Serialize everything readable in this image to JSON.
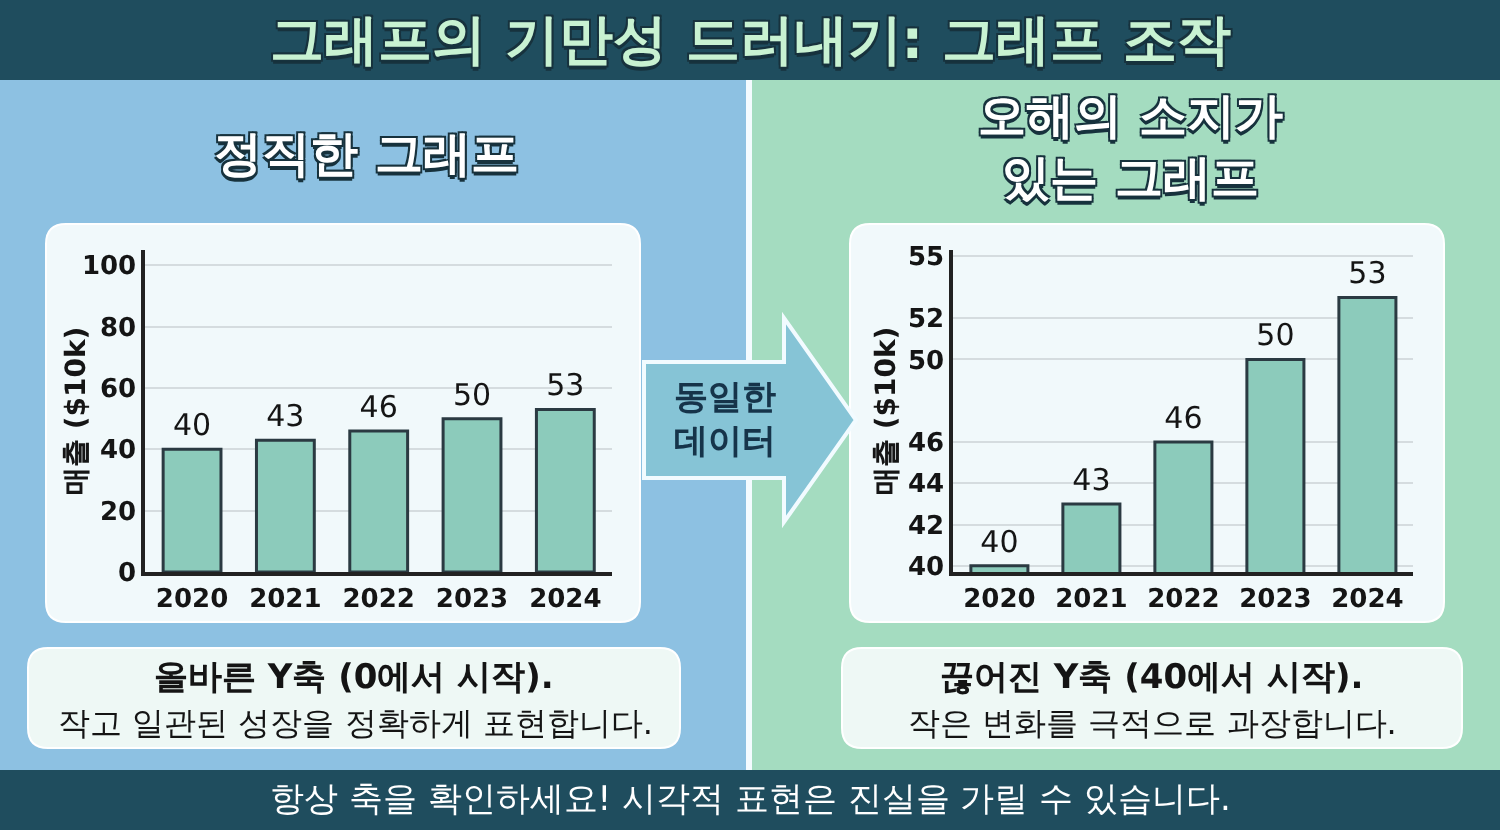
{
  "chart_data": [
    {
      "type": "other",
      "title": "그래프의 기만성 드러내기: 그래프 조작",
      "annotations": [
        "동일한 데이터",
        "항상 축을 확인하세요! 시각적 표현은 진실을 가릴 수 있습니다."
      ]
    },
    {
      "type": "bar",
      "title": "정직한 그래프",
      "categories": [
        "2020",
        "2021",
        "2022",
        "2023",
        "2024"
      ],
      "values": [
        40,
        43,
        46,
        50,
        53
      ],
      "color": "#8ccbbb",
      "ylabel": "매출 ($10k)",
      "ylim": [
        0,
        105
      ],
      "yticks": [
        0,
        20,
        40,
        60,
        80,
        100
      ],
      "grid": "y",
      "data_labels": true,
      "annotations": [
        "올바른 Y축 (0에서 시작).",
        "작고 일관된 성장을 정확하게 표현합니다."
      ]
    },
    {
      "type": "bar",
      "title": "오해의 소지가 있는 그래프",
      "categories": [
        "2020",
        "2021",
        "2022",
        "2023",
        "2024"
      ],
      "values": [
        40,
        43,
        46,
        50,
        53
      ],
      "color": "#8ccbbb",
      "ylabel": "매출 ($10k)",
      "ylim": [
        39.7,
        55.3
      ],
      "yticks": [
        40,
        42,
        44,
        46,
        50,
        52,
        55
      ],
      "grid": "y",
      "data_labels": true,
      "annotations": [
        "끊어진 Y축 (40에서 시작).",
        "작은 변화를 극적으로 과장합니다."
      ]
    }
  ]
}
